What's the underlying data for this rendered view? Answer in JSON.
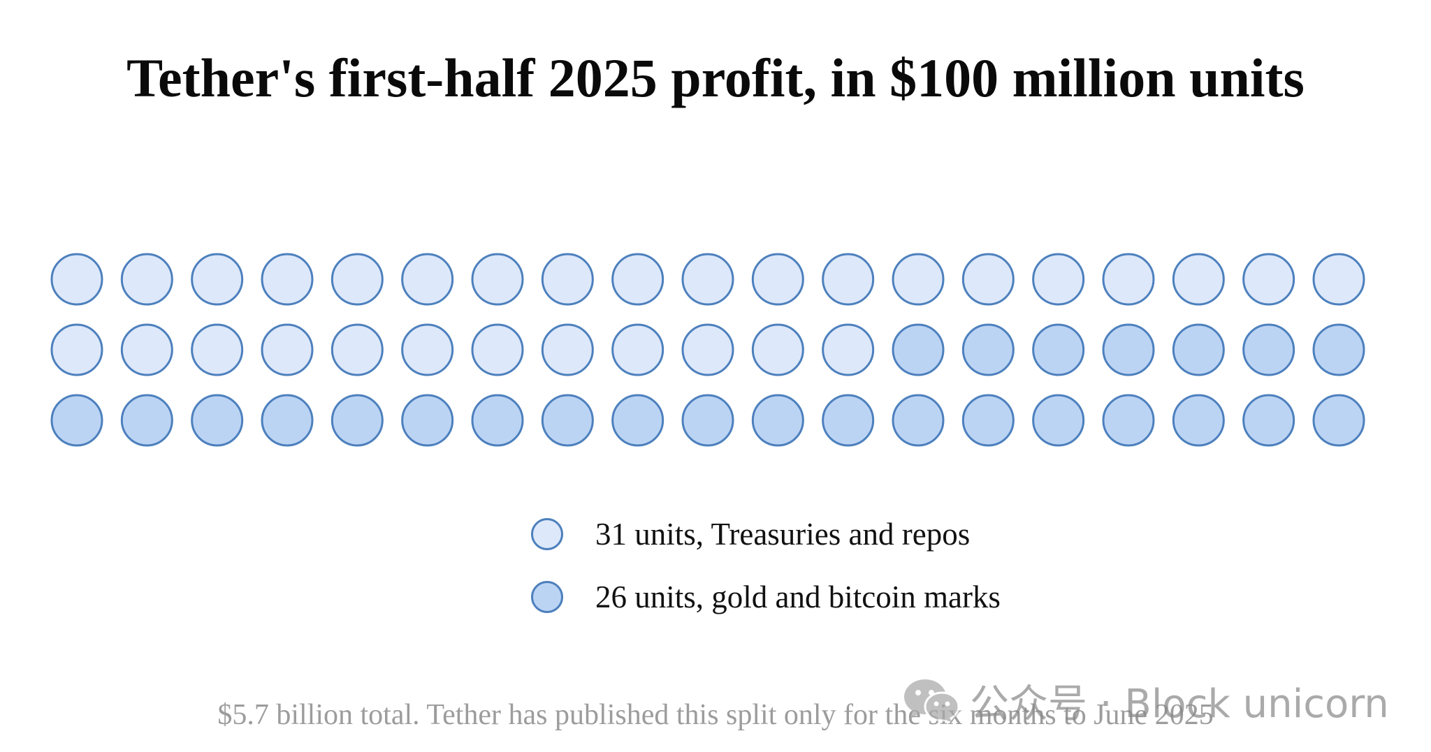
{
  "chart_data": {
    "type": "waffle",
    "title": "Tether's first-half 2025 profit, in $100 million units",
    "rows": 3,
    "columns": 19,
    "series": [
      {
        "name": "31 units, Treasuries and repos",
        "value": 31,
        "color": "#dde8fa"
      },
      {
        "name": "26 units, gold and bitcoin marks",
        "value": 26,
        "color": "#bcd4f4"
      }
    ],
    "outline_color": "#4d80bd",
    "note": "$5.7 billion total. Tether has published this split only for the six months to June 2025"
  },
  "watermark": {
    "icon": "wechat-icon",
    "text": "公众号 · Block unicorn"
  }
}
